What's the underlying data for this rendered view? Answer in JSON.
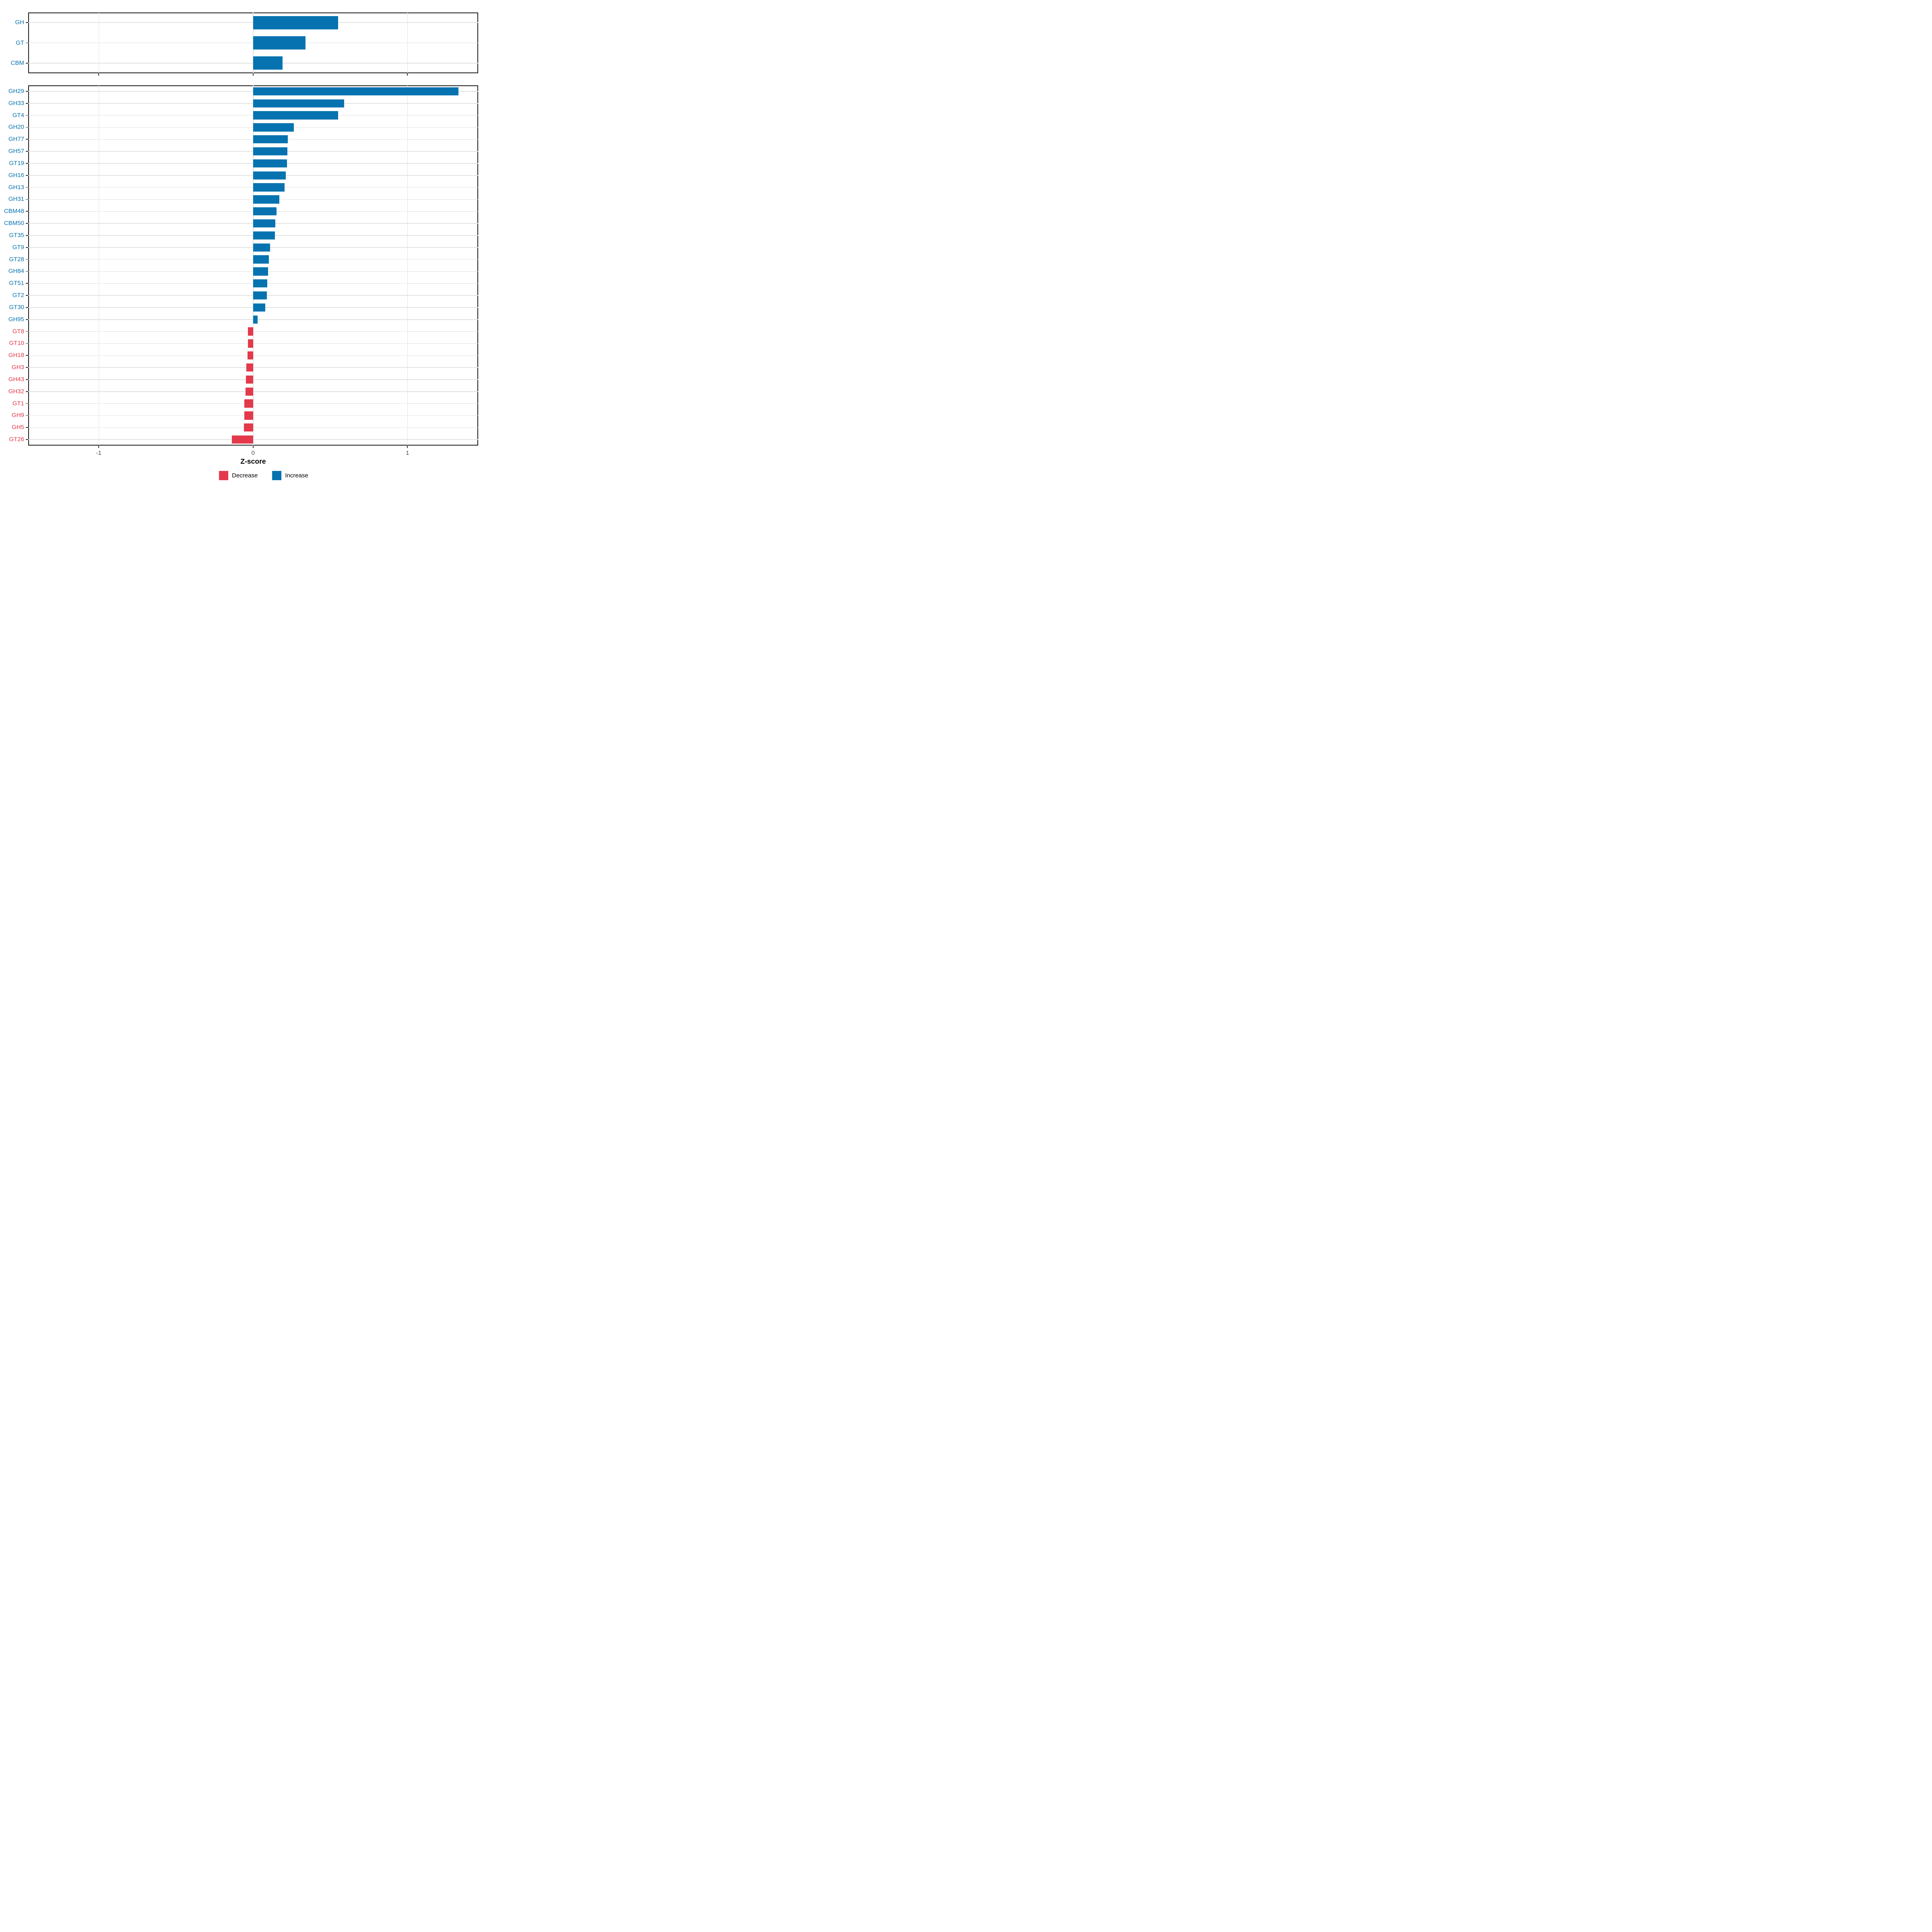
{
  "figure": {
    "background": "#FFFFFF"
  },
  "axis": {
    "title": "Z-score",
    "tick_labels": [
      "-1",
      "0",
      "1"
    ],
    "tick_values": [
      -1,
      0,
      1
    ],
    "xlim": [
      -1.46,
      1.46
    ]
  },
  "legend": {
    "items": [
      {
        "label": "Decrease",
        "color": "#E3394B"
      },
      {
        "label": "Increase",
        "color": "#0673B0"
      }
    ]
  },
  "styles": {
    "increase_color": "#0673B0",
    "decrease_color": "#E3394B",
    "grid_color": "#E2E2E2",
    "panel_border_color": "#1A1A1A",
    "tick_color": "#333333",
    "tick_label_color": "#4D4D4D"
  },
  "chart_data": [
    {
      "type": "bar",
      "orientation": "horizontal",
      "panel": "top",
      "title": "",
      "xlabel": "Z-score",
      "ylabel": "",
      "xlim": [
        -1.46,
        1.46
      ],
      "grid": true,
      "legend_position": "bottom",
      "categories": [
        "GH",
        "GT",
        "CBM"
      ],
      "values": [
        0.55,
        0.34,
        0.19
      ]
    },
    {
      "type": "bar",
      "orientation": "horizontal",
      "panel": "bottom",
      "title": "",
      "xlabel": "Z-score",
      "ylabel": "",
      "xlim": [
        -1.46,
        1.46
      ],
      "grid": true,
      "legend_position": "bottom",
      "categories": [
        "GH29",
        "GH33",
        "GT4",
        "GH20",
        "GH77",
        "GH57",
        "GT19",
        "GH16",
        "GH13",
        "GH31",
        "CBM48",
        "CBM50",
        "GT35",
        "GT9",
        "GT28",
        "GH84",
        "GT51",
        "GT2",
        "GT30",
        "GH95",
        "GT8",
        "GT10",
        "GH18",
        "GH3",
        "GH43",
        "GH32",
        "GT1",
        "GH9",
        "GH5",
        "GT26"
      ],
      "values": [
        1.33,
        0.59,
        0.55,
        0.265,
        0.226,
        0.223,
        0.22,
        0.212,
        0.205,
        0.171,
        0.153,
        0.143,
        0.141,
        0.11,
        0.102,
        0.097,
        0.092,
        0.09,
        0.08,
        0.029,
        -0.032,
        -0.034,
        -0.036,
        -0.044,
        -0.047,
        -0.049,
        -0.057,
        -0.058,
        -0.06,
        -0.138
      ]
    }
  ]
}
